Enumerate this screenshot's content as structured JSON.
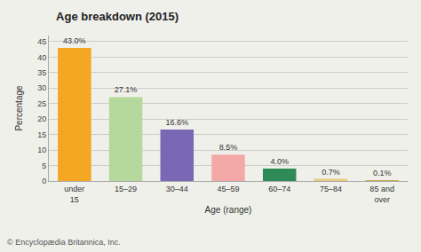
{
  "chart_data": {
    "type": "bar",
    "title": "Age breakdown (2015)",
    "categories": [
      "under\n15",
      "15–29",
      "30–44",
      "45–59",
      "60–74",
      "75–84",
      "85 and\nover"
    ],
    "values": [
      43.0,
      27.1,
      16.6,
      8.5,
      4.0,
      0.7,
      0.1
    ],
    "value_labels": [
      "43.0%",
      "27.1%",
      "16.6%",
      "8.5%",
      "4.0%",
      "0.7%",
      "0.1%"
    ],
    "data_labels": true,
    "colors": [
      "#f5a623",
      "#b5d99c",
      "#7b68b5",
      "#f4a9a8",
      "#2e8b57",
      "#e8c97e",
      "#c8a84b"
    ],
    "xlabel": "Age (range)",
    "ylabel": "Percentage",
    "ylim": [
      0,
      47
    ],
    "yticks": [
      0,
      5,
      10,
      15,
      20,
      25,
      30,
      35,
      40,
      45
    ],
    "grid": true,
    "annotations": [
      "© Encyclopædia Britannica, Inc."
    ]
  }
}
